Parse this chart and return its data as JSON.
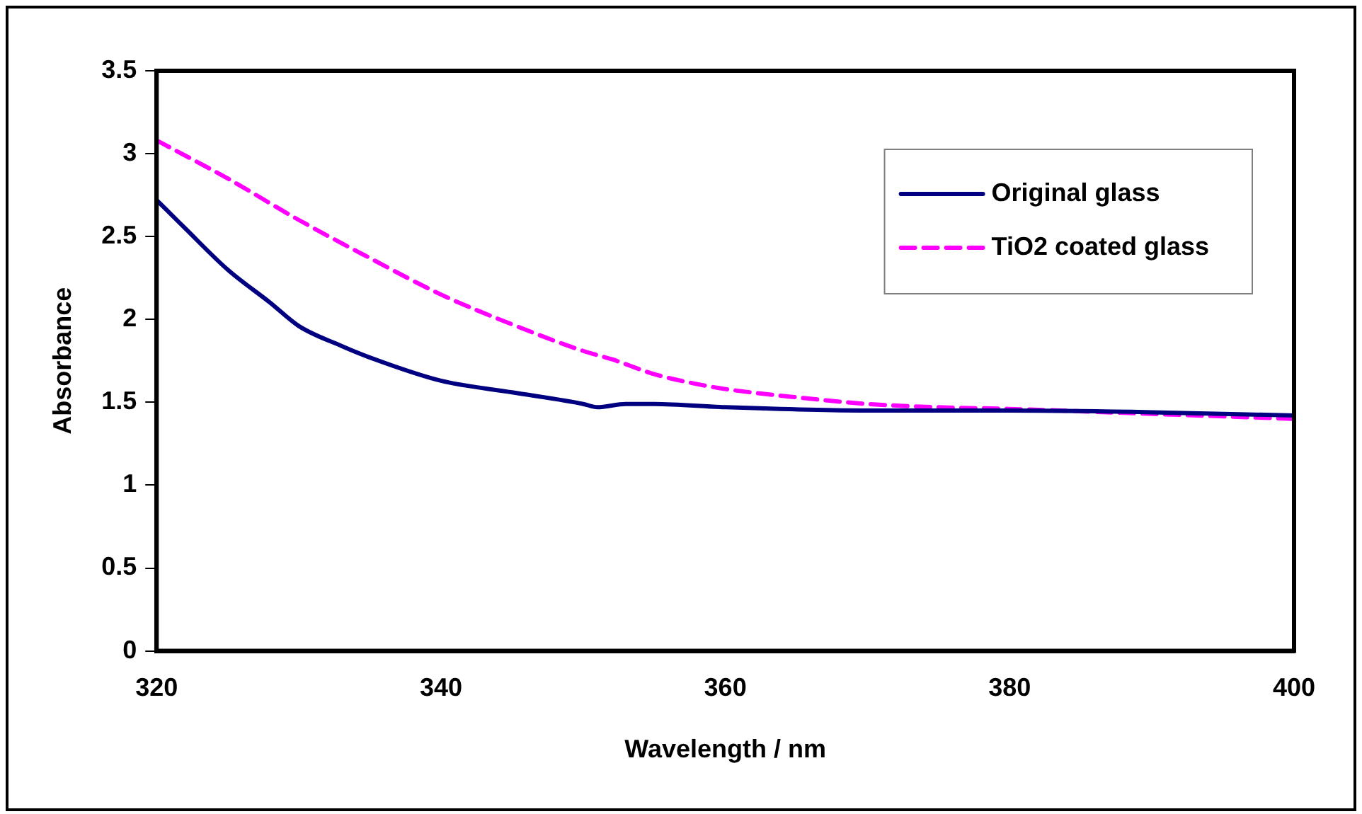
{
  "chart_data": {
    "type": "line",
    "xlabel": "Wavelength / nm",
    "ylabel": "Absorbance",
    "xlim": [
      320,
      400
    ],
    "xticks": [
      320,
      340,
      360,
      380,
      400
    ],
    "ylim": [
      0,
      3.5
    ],
    "yticks": [
      0,
      0.5,
      1,
      1.5,
      2,
      2.5,
      3,
      3.5
    ],
    "grid": false,
    "legend": "top right",
    "marker": "none",
    "series": [
      {
        "name": "Original glass",
        "color": "#000080",
        "line_style": "solid",
        "x": [
          320,
          322,
          325,
          328,
          330,
          333,
          335,
          340,
          345,
          350,
          351,
          353,
          355,
          360,
          370,
          380,
          390,
          400
        ],
        "values": [
          2.72,
          2.55,
          2.3,
          2.1,
          1.96,
          1.84,
          1.77,
          1.63,
          1.56,
          1.49,
          1.47,
          1.49,
          1.49,
          1.47,
          1.45,
          1.45,
          1.44,
          1.42
        ]
      },
      {
        "name": "TiO2 coated glass",
        "color": "#ff00ff",
        "line_style": "dashed",
        "x": [
          320,
          325,
          330,
          335,
          340,
          345,
          350,
          352,
          355,
          358,
          360,
          365,
          370,
          375,
          380,
          390,
          400
        ],
        "values": [
          3.08,
          2.85,
          2.6,
          2.37,
          2.15,
          1.97,
          1.81,
          1.76,
          1.67,
          1.61,
          1.58,
          1.53,
          1.49,
          1.47,
          1.46,
          1.43,
          1.4
        ]
      }
    ]
  }
}
